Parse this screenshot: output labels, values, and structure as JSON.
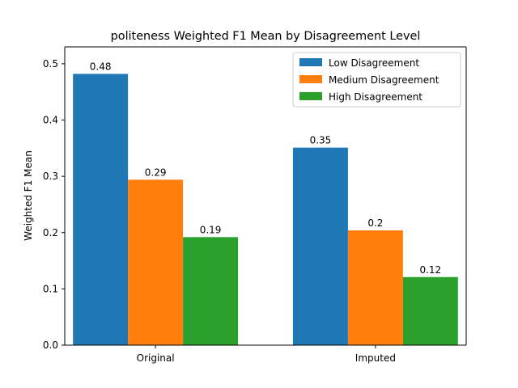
{
  "chart_data": {
    "type": "bar",
    "title": "politeness Weighted F1 Mean by Disagreement Level",
    "xlabel": "",
    "ylabel": "Weighted F1 Mean",
    "categories": [
      "Original",
      "Imputed"
    ],
    "series": [
      {
        "name": "Low Disagreement",
        "color": "#1f77b4",
        "values": [
          0.482,
          0.351
        ],
        "labels": [
          "0.48",
          "0.35"
        ]
      },
      {
        "name": "Medium Disagreement",
        "color": "#ff7f0e",
        "values": [
          0.294,
          0.204
        ],
        "labels": [
          "0.29",
          "0.2"
        ]
      },
      {
        "name": "High Disagreement",
        "color": "#2ca02c",
        "values": [
          0.192,
          0.121
        ],
        "labels": [
          "0.19",
          "0.12"
        ]
      }
    ],
    "ylim": [
      0,
      0.53
    ],
    "yticks": [
      0.0,
      0.1,
      0.2,
      0.3,
      0.4,
      0.5
    ],
    "ytick_labels": [
      "0.0",
      "0.1",
      "0.2",
      "0.3",
      "0.4",
      "0.5"
    ],
    "grid": false,
    "legend_position": "top-right"
  }
}
